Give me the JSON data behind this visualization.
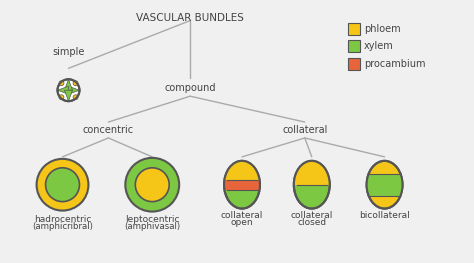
{
  "title": "VASCULAR BUNDLES",
  "bg_color": "#f0f0f0",
  "line_color": "#aaaaaa",
  "text_color": "#444444",
  "phloem_color": "#f5c518",
  "xylem_color": "#7dc842",
  "procambium_color": "#e8643a",
  "outline_color": "#555555",
  "legend": [
    {
      "label": "phloem",
      "color": "#f5c518"
    },
    {
      "label": "xylem",
      "color": "#7dc842"
    },
    {
      "label": "procambium",
      "color": "#e8643a"
    }
  ],
  "figw": 4.74,
  "figh": 2.63,
  "dpi": 100
}
